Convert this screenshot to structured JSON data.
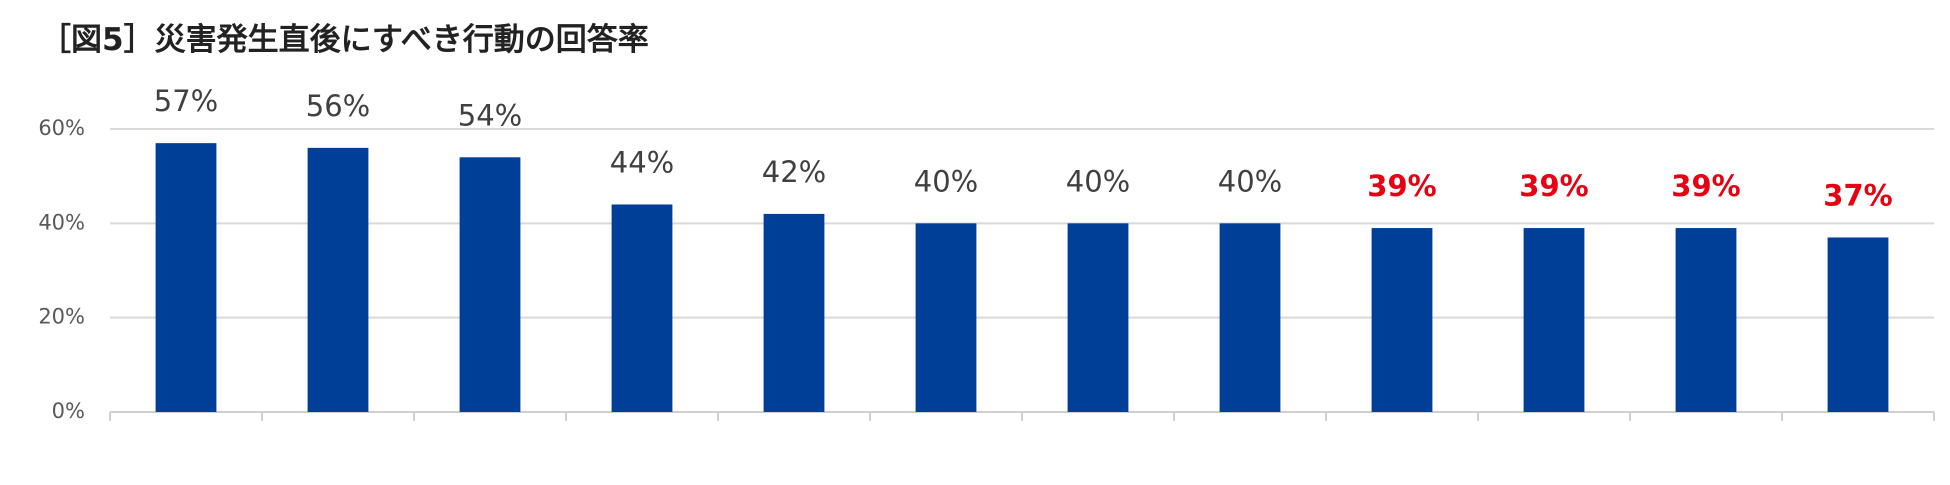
{
  "chart_data": {
    "type": "bar",
    "title": "［図5］災害発生直後にすべき行動の回答率",
    "categories": [
      null,
      null,
      null,
      null,
      null,
      null,
      null,
      null,
      null,
      null,
      null,
      null
    ],
    "values": [
      57,
      56,
      54,
      44,
      42,
      40,
      40,
      40,
      39,
      39,
      39,
      37
    ],
    "value_labels": [
      "57%",
      "56%",
      "54%",
      "44%",
      "42%",
      "40%",
      "40%",
      "40%",
      "39%",
      "39%",
      "39%",
      "37%"
    ],
    "value_label_colors": [
      "#404040",
      "#404040",
      "#404040",
      "#404040",
      "#404040",
      "#404040",
      "#404040",
      "#404040",
      "#e60012",
      "#e60012",
      "#e60012",
      "#e60012"
    ],
    "color": "#003f98",
    "ylim": [
      0,
      60
    ],
    "yticks": [
      {
        "value": 0,
        "label": "0%"
      },
      {
        "value": 20,
        "label": "20%"
      },
      {
        "value": 40,
        "label": "40%"
      },
      {
        "value": 60,
        "label": "60%"
      }
    ],
    "grid": true
  }
}
